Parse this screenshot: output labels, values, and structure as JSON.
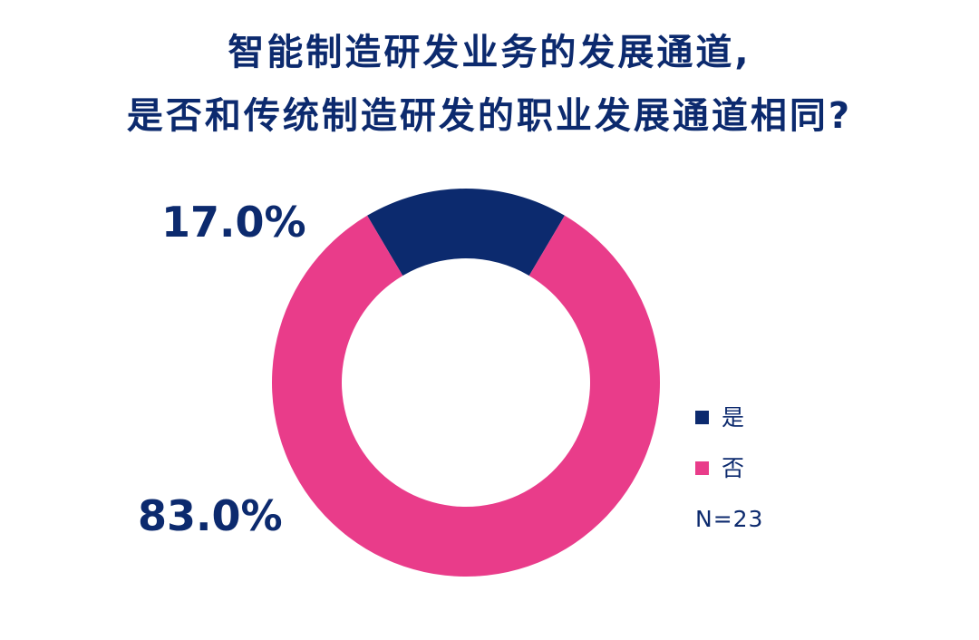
{
  "colors": {
    "navy": "#0c2a6e",
    "pink": "#e93c8a"
  },
  "chart_data": {
    "type": "pie",
    "variant": "donut",
    "title_lines": [
      "智能制造研发业务的发展通道,",
      "是否和传统制造研发的职业发展通道相同?"
    ],
    "slices": [
      {
        "label": "是",
        "value": 17.0,
        "value_label": "17.0%",
        "color": "#0c2a6e"
      },
      {
        "label": "否",
        "value": 83.0,
        "value_label": "83.0%",
        "color": "#e93c8a"
      }
    ],
    "legend": {
      "placement": "right",
      "items": [
        "是",
        "否"
      ]
    },
    "sample_size": "N=23"
  }
}
